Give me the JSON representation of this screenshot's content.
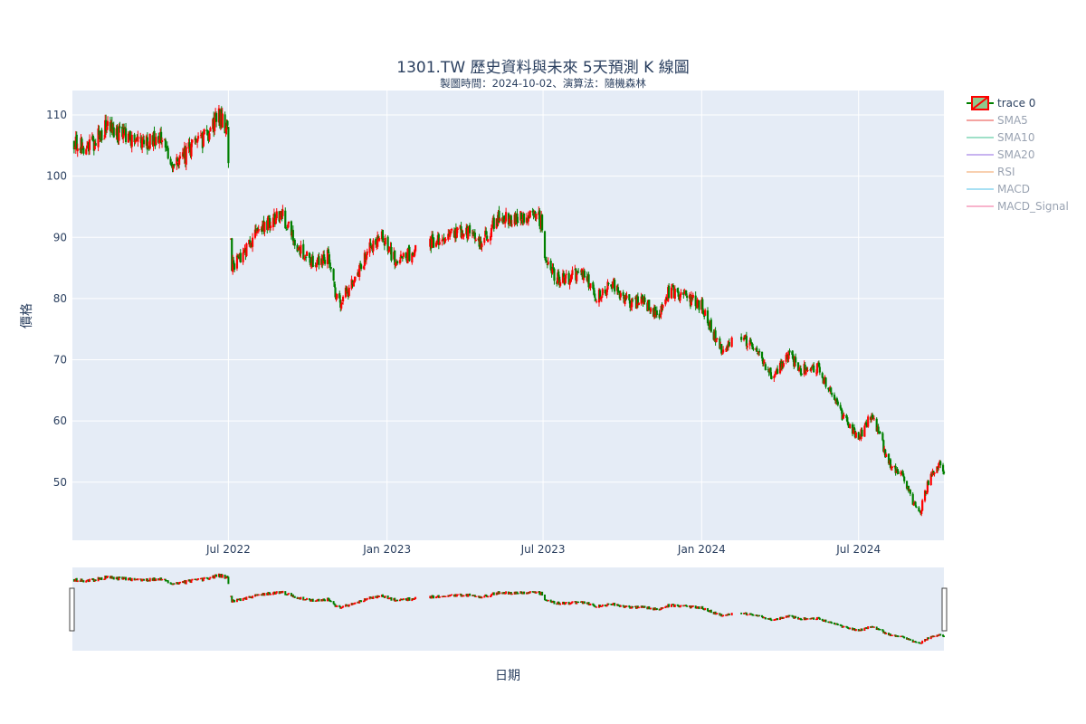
{
  "chart_data": {
    "type": "candlestick",
    "title": "1301.TW 歷史資料與未來 5天預測 K 線圖",
    "subtitle": "製圖時間：2024-10-02、演算法：隨機森林",
    "xlabel": "日期",
    "ylabel": "價格",
    "ylim": [
      40.5,
      114
    ],
    "yticks": [
      50,
      60,
      70,
      80,
      90,
      100,
      110
    ],
    "x_range": [
      "2022-01-01",
      "2024-10-08"
    ],
    "xtick_dates": [
      "2022-07-01",
      "2023-01-01",
      "2023-07-01",
      "2024-01-01",
      "2024-07-01"
    ],
    "xtick_labels": [
      "Jul 2022",
      "Jan 2023",
      "Jul 2023",
      "Jan 2024",
      "Jul 2024"
    ],
    "increasing_color": "#ff0000",
    "decreasing_color": "#008000",
    "price_path": [
      [
        "2022-01-01",
        106
      ],
      [
        "2022-01-20",
        104.5
      ],
      [
        "2022-02-10",
        108
      ],
      [
        "2022-03-01",
        106.5
      ],
      [
        "2022-03-25",
        105.5
      ],
      [
        "2022-04-15",
        106
      ],
      [
        "2022-05-01",
        101.5
      ],
      [
        "2022-05-15",
        104
      ],
      [
        "2022-06-01",
        106
      ],
      [
        "2022-06-20",
        110
      ],
      [
        "2022-06-30",
        107
      ],
      [
        "2022-07-02",
        99
      ],
      [
        "2022-07-05",
        85
      ],
      [
        "2022-07-20",
        88
      ],
      [
        "2022-08-10",
        92
      ],
      [
        "2022-09-01",
        94
      ],
      [
        "2022-09-20",
        88
      ],
      [
        "2022-10-10",
        85.5
      ],
      [
        "2022-10-25",
        87
      ],
      [
        "2022-11-05",
        79
      ],
      [
        "2022-11-25",
        83
      ],
      [
        "2022-12-10",
        88
      ],
      [
        "2022-12-25",
        90
      ],
      [
        "2023-01-10",
        86.5
      ],
      [
        "2023-01-25",
        87
      ],
      [
        "2023-02-10",
        89
      ],
      [
        "2023-03-10",
        90
      ],
      [
        "2023-04-01",
        91
      ],
      [
        "2023-04-20",
        89.5
      ],
      [
        "2023-05-10",
        93
      ],
      [
        "2023-06-01",
        93
      ],
      [
        "2023-06-20",
        94
      ],
      [
        "2023-06-29",
        92.5
      ],
      [
        "2023-07-01",
        88
      ],
      [
        "2023-07-15",
        83
      ],
      [
        "2023-08-01",
        83.5
      ],
      [
        "2023-08-15",
        84.5
      ],
      [
        "2023-09-01",
        80
      ],
      [
        "2023-09-20",
        82.5
      ],
      [
        "2023-10-10",
        79
      ],
      [
        "2023-10-25",
        80
      ],
      [
        "2023-11-10",
        77
      ],
      [
        "2023-11-25",
        81.5
      ],
      [
        "2023-12-15",
        80
      ],
      [
        "2024-01-01",
        79
      ],
      [
        "2024-01-15",
        74
      ],
      [
        "2024-01-25",
        71
      ],
      [
        "2024-02-05",
        73
      ],
      [
        "2024-02-20",
        73.5
      ],
      [
        "2024-03-10",
        70
      ],
      [
        "2024-03-25",
        67
      ],
      [
        "2024-04-10",
        71
      ],
      [
        "2024-04-25",
        68.5
      ],
      [
        "2024-05-15",
        68.5
      ],
      [
        "2024-06-01",
        64
      ],
      [
        "2024-06-15",
        60
      ],
      [
        "2024-07-01",
        57
      ],
      [
        "2024-07-15",
        61
      ],
      [
        "2024-07-25",
        58
      ],
      [
        "2024-08-05",
        53
      ],
      [
        "2024-08-20",
        51.5
      ],
      [
        "2024-09-01",
        47
      ],
      [
        "2024-09-10",
        45
      ],
      [
        "2024-09-20",
        50
      ],
      [
        "2024-10-02",
        53
      ],
      [
        "2024-10-08",
        52
      ]
    ],
    "gaps": [
      [
        "2023-02-05",
        "2023-02-18"
      ],
      [
        "2024-02-06",
        "2024-02-15"
      ]
    ],
    "legend": [
      {
        "name": "trace 0",
        "color": "#ff0000",
        "fill": "#90c88c",
        "active": true
      },
      {
        "name": "SMA5",
        "color": "#f4a3a0",
        "active": false
      },
      {
        "name": "SMA10",
        "color": "#9fe0c8",
        "active": false
      },
      {
        "name": "SMA20",
        "color": "#c8b4f0",
        "active": false
      },
      {
        "name": "RSI",
        "color": "#f8d0b0",
        "active": false
      },
      {
        "name": "MACD",
        "color": "#a8e0f4",
        "active": false
      },
      {
        "name": "MACD_Signal",
        "color": "#f8b4cc",
        "active": false
      }
    ],
    "legend_position": "top-right",
    "plot_bgcolor": "#e5ecf6",
    "grid": true,
    "rangeslider": true
  }
}
